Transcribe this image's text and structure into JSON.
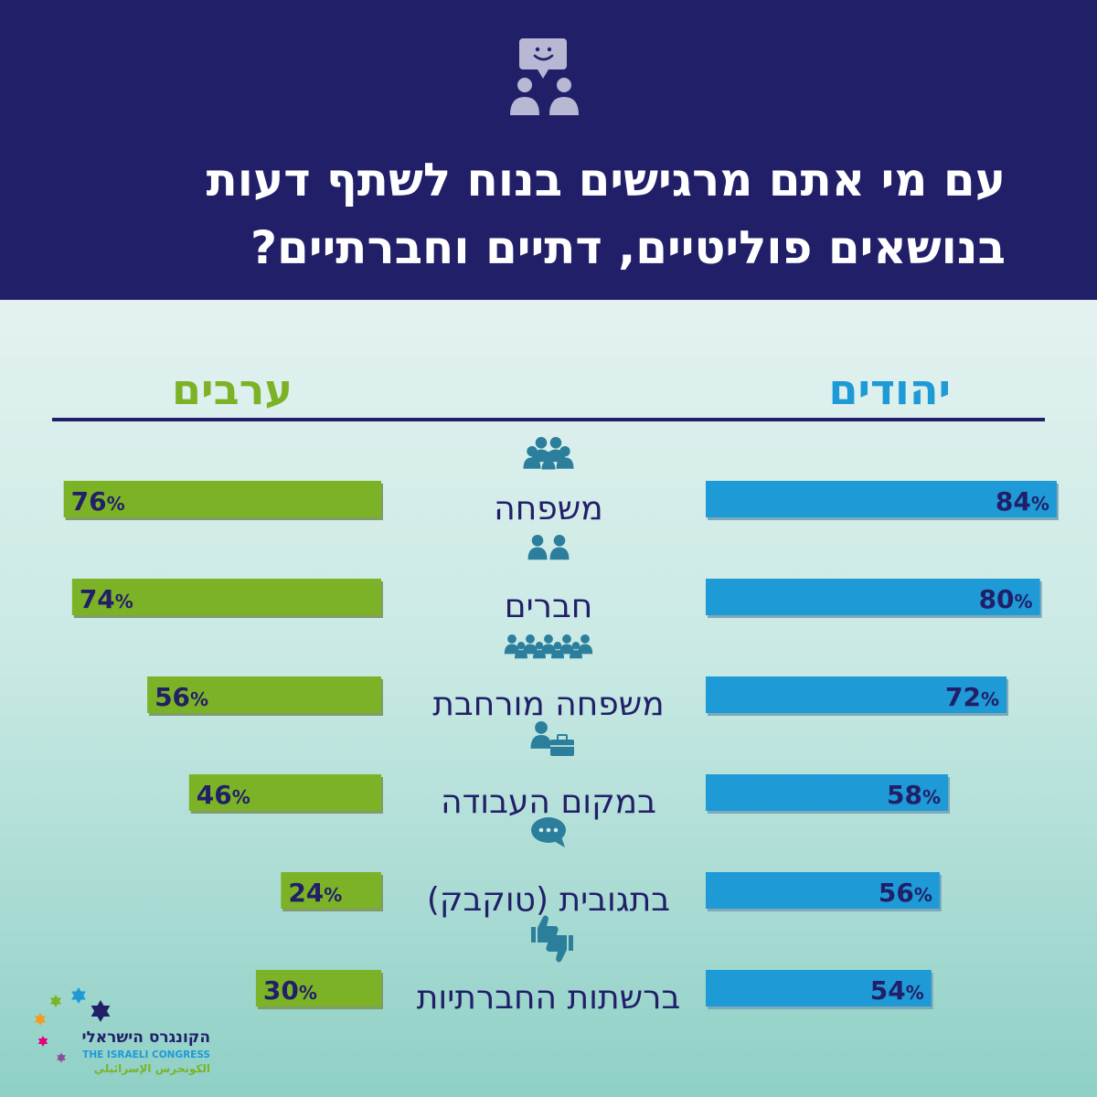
{
  "title_lines": [
    "עם מי אתם מרגישים בנוח לשתף דעות",
    "בנושאים פוליטיים, דתיים וחברתיים?"
  ],
  "colors": {
    "header_bg": "#221f69",
    "jews": "#1e9ad6",
    "arabs": "#7cb326",
    "text_dark": "#221f69",
    "icon": "#2b7f9c"
  },
  "chart_data": {
    "type": "bar",
    "orientation": "horizontal",
    "categories": [
      "משפחה",
      "חברים",
      "משפחה מורחבת",
      "במקום העבודה",
      "בתגובית (טוקבק)",
      "ברשתות החברתיות"
    ],
    "category_icons": [
      "family-icon",
      "friends-icon",
      "extended-family-icon",
      "workplace-icon",
      "comment-bubble-icon",
      "thumbs-icon"
    ],
    "series": [
      {
        "name": "יהודים",
        "values": [
          84,
          80,
          72,
          58,
          56,
          54
        ]
      },
      {
        "name": "ערבים",
        "values": [
          76,
          74,
          56,
          46,
          24,
          30
        ]
      }
    ],
    "unit": "%",
    "xlim": [
      0,
      100
    ]
  },
  "logo": {
    "hebrew": "הקונגרס הישראלי",
    "english": "THE ISRAELI CONGRESS",
    "arabic": "الكونجرس الإسرائيلي"
  }
}
